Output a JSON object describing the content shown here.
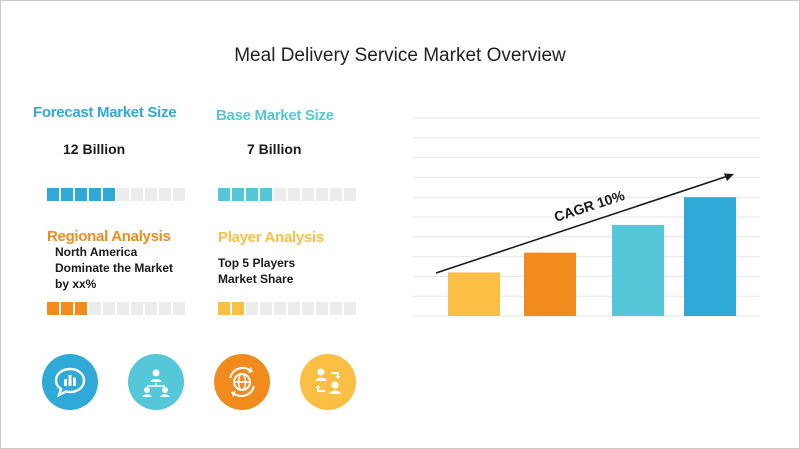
{
  "title": "Meal Delivery Service Market Overview",
  "metrics": [
    {
      "heading": "Forecast Market Size",
      "value": "12 Billion",
      "heading_color": "#2fa9d8",
      "fill_color": "#2fa9d8",
      "filled": 5,
      "total": 10
    },
    {
      "heading": "Base Market Size",
      "value": "7 Billion",
      "heading_color": "#56c7d8",
      "fill_color": "#56c7d8",
      "filled": 4,
      "total": 10
    },
    {
      "heading": "Regional Analysis",
      "text_lines": [
        "North America",
        "Dominate the Market",
        "by xx%"
      ],
      "heading_color": "#f28b1e",
      "fill_color": "#f28b1e",
      "filled": 3,
      "total": 10
    },
    {
      "heading": "Player Analysis",
      "text_lines": [
        "Top 5 Players",
        "Market Share"
      ],
      "heading_color": "#fbbf45",
      "fill_color": "#fbbf45",
      "filled": 2,
      "total": 10
    }
  ],
  "icons": [
    {
      "name": "chat-chart-icon",
      "color": "#2fa9d8"
    },
    {
      "name": "people-network-icon",
      "color": "#56c7d8"
    },
    {
      "name": "globe-arrows-icon",
      "color": "#f28b1e"
    },
    {
      "name": "people-exchange-icon",
      "color": "#fbbf45"
    }
  ],
  "chart_data": {
    "type": "bar",
    "categories": [
      "",
      "",
      "",
      ""
    ],
    "values": [
      2.2,
      3.2,
      4.6,
      6.0
    ],
    "colors": [
      "#fbbf45",
      "#f28b1e",
      "#56c7d8",
      "#2fa9d8"
    ],
    "ylim": [
      0,
      10
    ],
    "grid": true,
    "annotation": "CAGR 10%"
  }
}
